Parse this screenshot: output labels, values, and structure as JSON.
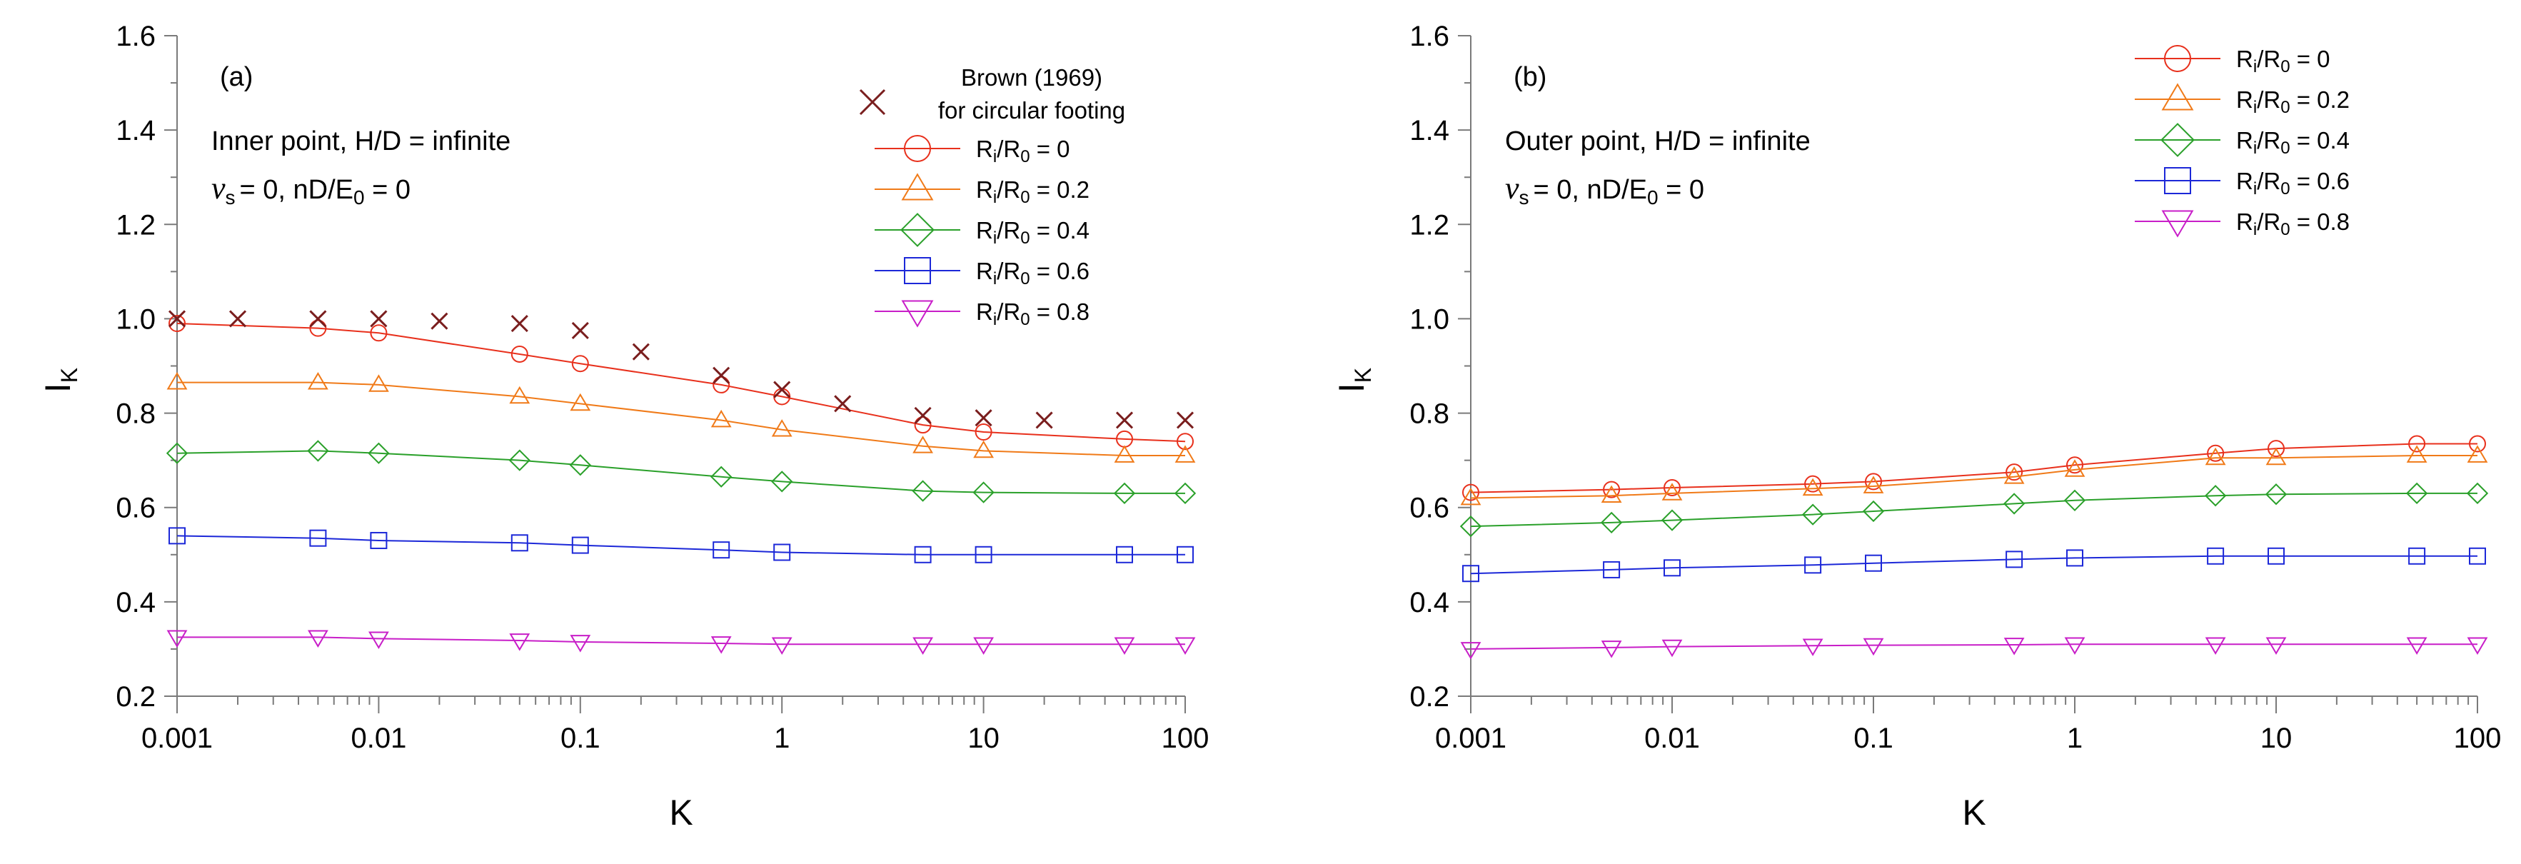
{
  "colors": {
    "r0": "#e8301c",
    "r02": "#f07a18",
    "r04": "#2aa02a",
    "r06": "#1c28d8",
    "r08": "#c81ec8",
    "brown": "#7a1e1e",
    "axis": "#7a7a7a"
  },
  "chart_data": [
    {
      "type": "line",
      "panel_label": "(a)",
      "xscale": "log",
      "xlabel": "K",
      "ylabel_main": "I",
      "ylabel_sub": "K",
      "xlim": [
        0.001,
        100
      ],
      "ylim": [
        0.2,
        1.6
      ],
      "xticklabels": [
        "0.001",
        "0.01",
        "0.1",
        "1",
        "10",
        "100"
      ],
      "yticklabels": [
        "0.2",
        "0.4",
        "0.6",
        "0.8",
        "1.0",
        "1.2",
        "1.4",
        "1.6"
      ],
      "annotation_line1": "Inner point, H/D = infinite",
      "annotation_line2": "= 0, nD/E",
      "annotation_nu": "ν",
      "annotation_nu_sub": "s",
      "annotation_e_sub": "0",
      "annotation_tail": " = 0",
      "reference": {
        "name_line1": "Brown (1969)",
        "name_line2": "for circular footing",
        "x": [
          0.001,
          0.002,
          0.005,
          0.01,
          0.02,
          0.05,
          0.1,
          0.2,
          0.5,
          1,
          2,
          5,
          10,
          20,
          50,
          100
        ],
        "y": [
          1.0,
          1.0,
          1.0,
          1.0,
          0.995,
          0.99,
          0.975,
          0.93,
          0.88,
          0.85,
          0.82,
          0.795,
          0.79,
          0.785,
          0.785,
          0.785
        ]
      },
      "series": [
        {
          "name": "Ri/R0 = 0",
          "legend_value": "0",
          "marker": "circle",
          "color_key": "r0",
          "x": [
            0.001,
            0.005,
            0.01,
            0.05,
            0.1,
            0.5,
            1,
            5,
            10,
            50,
            100
          ],
          "y": [
            0.99,
            0.98,
            0.97,
            0.925,
            0.905,
            0.86,
            0.835,
            0.775,
            0.76,
            0.745,
            0.74
          ]
        },
        {
          "name": "Ri/R0 = 0.2",
          "legend_value": "0.2",
          "marker": "triangle-up",
          "color_key": "r02",
          "x": [
            0.001,
            0.005,
            0.01,
            0.05,
            0.1,
            0.5,
            1,
            5,
            10,
            50,
            100
          ],
          "y": [
            0.865,
            0.865,
            0.86,
            0.835,
            0.82,
            0.785,
            0.765,
            0.73,
            0.72,
            0.71,
            0.71
          ]
        },
        {
          "name": "Ri/R0 = 0.4",
          "legend_value": "0.4",
          "marker": "diamond",
          "color_key": "r04",
          "x": [
            0.001,
            0.005,
            0.01,
            0.05,
            0.1,
            0.5,
            1,
            5,
            10,
            50,
            100
          ],
          "y": [
            0.715,
            0.72,
            0.715,
            0.7,
            0.69,
            0.665,
            0.655,
            0.635,
            0.632,
            0.63,
            0.63
          ]
        },
        {
          "name": "Ri/R0 = 0.6",
          "legend_value": "0.6",
          "marker": "square",
          "color_key": "r06",
          "x": [
            0.001,
            0.005,
            0.01,
            0.05,
            0.1,
            0.5,
            1,
            5,
            10,
            50,
            100
          ],
          "y": [
            0.54,
            0.535,
            0.53,
            0.525,
            0.52,
            0.51,
            0.505,
            0.5,
            0.5,
            0.5,
            0.5
          ]
        },
        {
          "name": "Ri/R0 = 0.8",
          "legend_value": "0.8",
          "marker": "triangle-down",
          "color_key": "r08",
          "x": [
            0.001,
            0.005,
            0.01,
            0.05,
            0.1,
            0.5,
            1,
            5,
            10,
            50,
            100
          ],
          "y": [
            0.325,
            0.325,
            0.322,
            0.318,
            0.315,
            0.312,
            0.31,
            0.31,
            0.31,
            0.31,
            0.31
          ]
        }
      ]
    },
    {
      "type": "line",
      "panel_label": "(b)",
      "xscale": "log",
      "xlabel": "K",
      "ylabel_main": "I",
      "ylabel_sub": "K",
      "xlim": [
        0.001,
        100
      ],
      "ylim": [
        0.2,
        1.6
      ],
      "xticklabels": [
        "0.001",
        "0.01",
        "0.1",
        "1",
        "10",
        "100"
      ],
      "yticklabels": [
        "0.2",
        "0.4",
        "0.6",
        "0.8",
        "1.0",
        "1.2",
        "1.4",
        "1.6"
      ],
      "annotation_line1": "Outer point, H/D = infinite",
      "annotation_line2": "= 0, nD/E",
      "annotation_nu": "ν",
      "annotation_nu_sub": "s",
      "annotation_e_sub": "0",
      "annotation_tail": " = 0",
      "series": [
        {
          "name": "Ri/R0 = 0",
          "legend_value": "0",
          "marker": "circle",
          "color_key": "r0",
          "x": [
            0.001,
            0.005,
            0.01,
            0.05,
            0.1,
            0.5,
            1,
            5,
            10,
            50,
            100
          ],
          "y": [
            0.632,
            0.638,
            0.642,
            0.65,
            0.655,
            0.675,
            0.69,
            0.715,
            0.725,
            0.735,
            0.735
          ]
        },
        {
          "name": "Ri/R0 = 0.2",
          "legend_value": "0.2",
          "marker": "triangle-up",
          "color_key": "r02",
          "x": [
            0.001,
            0.005,
            0.01,
            0.05,
            0.1,
            0.5,
            1,
            5,
            10,
            50,
            100
          ],
          "y": [
            0.62,
            0.625,
            0.63,
            0.64,
            0.645,
            0.665,
            0.68,
            0.705,
            0.705,
            0.71,
            0.71
          ]
        },
        {
          "name": "Ri/R0 = 0.4",
          "legend_value": "0.4",
          "marker": "diamond",
          "color_key": "r04",
          "x": [
            0.001,
            0.005,
            0.01,
            0.05,
            0.1,
            0.5,
            1,
            5,
            10,
            50,
            100
          ],
          "y": [
            0.56,
            0.568,
            0.573,
            0.585,
            0.592,
            0.608,
            0.615,
            0.625,
            0.628,
            0.63,
            0.63
          ]
        },
        {
          "name": "Ri/R0 = 0.6",
          "legend_value": "0.6",
          "marker": "square",
          "color_key": "r06",
          "x": [
            0.001,
            0.005,
            0.01,
            0.05,
            0.1,
            0.5,
            1,
            5,
            10,
            50,
            100
          ],
          "y": [
            0.46,
            0.468,
            0.472,
            0.478,
            0.482,
            0.49,
            0.493,
            0.497,
            0.497,
            0.497,
            0.497
          ]
        },
        {
          "name": "Ri/R0 = 0.8",
          "legend_value": "0.8",
          "marker": "triangle-down",
          "color_key": "r08",
          "x": [
            0.001,
            0.005,
            0.01,
            0.05,
            0.1,
            0.5,
            1,
            5,
            10,
            50,
            100
          ],
          "y": [
            0.3,
            0.303,
            0.305,
            0.307,
            0.308,
            0.309,
            0.31,
            0.31,
            0.31,
            0.31,
            0.31
          ]
        }
      ]
    }
  ]
}
